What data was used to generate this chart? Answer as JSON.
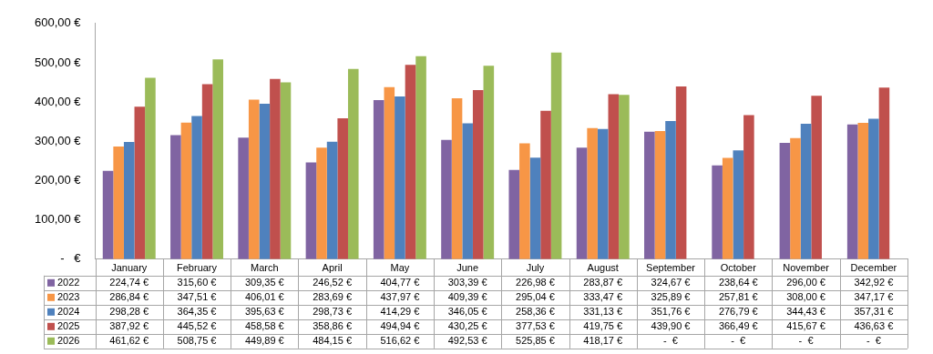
{
  "chart_data": {
    "type": "bar",
    "categories": [
      "January",
      "February",
      "March",
      "April",
      "May",
      "June",
      "July",
      "August",
      "September",
      "October",
      "November",
      "December"
    ],
    "ylim": [
      0,
      600
    ],
    "yticks": [
      {
        "value": 0,
        "label": "-   €"
      },
      {
        "value": 100,
        "label": "100,00 €"
      },
      {
        "value": 200,
        "label": "200,00 €"
      },
      {
        "value": 300,
        "label": "300,00 €"
      },
      {
        "value": 400,
        "label": "400,00 €"
      },
      {
        "value": 500,
        "label": "500,00 €"
      },
      {
        "value": 600,
        "label": "600,00 €"
      }
    ],
    "grid": false,
    "legend": "bottom",
    "series": [
      {
        "name": "2022",
        "color": "#8064a2",
        "values": [
          224.74,
          315.6,
          309.35,
          246.52,
          404.77,
          303.39,
          226.98,
          283.87,
          324.67,
          238.64,
          296.0,
          342.92
        ],
        "value_labels": [
          "224,74 €",
          "315,60 €",
          "309,35 €",
          "246,52 €",
          "404,77 €",
          "303,39 €",
          "226,98 €",
          "283,87 €",
          "324,67 €",
          "238,64 €",
          "296,00 €",
          "342,92 €"
        ]
      },
      {
        "name": "2023",
        "color": "#f79646",
        "values": [
          286.84,
          347.51,
          406.01,
          283.69,
          437.97,
          409.39,
          295.04,
          333.47,
          325.89,
          257.81,
          308.0,
          347.17
        ],
        "value_labels": [
          "286,84 €",
          "347,51 €",
          "406,01 €",
          "283,69 €",
          "437,97 €",
          "409,39 €",
          "295,04 €",
          "333,47 €",
          "325,89 €",
          "257,81 €",
          "308,00 €",
          "347,17 €"
        ]
      },
      {
        "name": "2024",
        "color": "#4f81bd",
        "values": [
          298.28,
          364.35,
          395.63,
          298.73,
          414.29,
          346.05,
          258.36,
          331.13,
          351.76,
          276.79,
          344.43,
          357.31
        ],
        "value_labels": [
          "298,28 €",
          "364,35 €",
          "395,63 €",
          "298,73 €",
          "414,29 €",
          "346,05 €",
          "258,36 €",
          "331,13 €",
          "351,76 €",
          "276,79 €",
          "344,43 €",
          "357,31 €"
        ]
      },
      {
        "name": "2025",
        "color": "#c0504d",
        "values": [
          387.92,
          445.52,
          458.58,
          358.86,
          494.94,
          430.25,
          377.53,
          419.75,
          439.9,
          366.49,
          415.67,
          436.63
        ],
        "value_labels": [
          "387,92 €",
          "445,52 €",
          "458,58 €",
          "358,86 €",
          "494,94 €",
          "430,25 €",
          "377,53 €",
          "419,75 €",
          "439,90 €",
          "366,49 €",
          "415,67 €",
          "436,63 €"
        ]
      },
      {
        "name": "2026",
        "color": "#9bbb59",
        "values": [
          461.62,
          508.75,
          449.89,
          484.15,
          516.62,
          492.53,
          525.85,
          418.17,
          0,
          0,
          0,
          0
        ],
        "value_labels": [
          "461,62 €",
          "508,75 €",
          "449,89 €",
          "484,15 €",
          "516,62 €",
          "492,53 €",
          "525,85 €",
          "418,17 €",
          "-  €",
          "-  €",
          "-  €",
          "-  €"
        ]
      }
    ]
  }
}
